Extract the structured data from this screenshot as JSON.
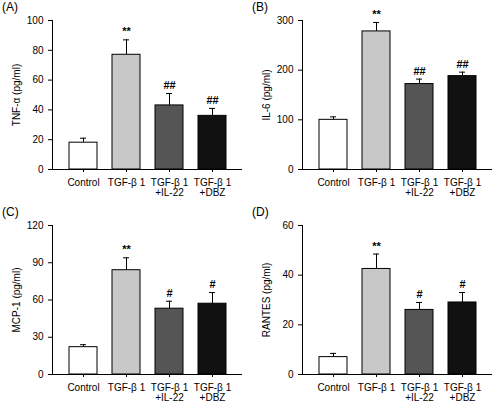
{
  "chart_data": [
    {
      "type": "bar",
      "title": "(A)",
      "y_label": "TNF-α (pg/ml)",
      "categories": [
        "Control",
        "TGF-β 1",
        "TGF-β 1\n+IL-22",
        "TGF-β 1\n+DBZ"
      ],
      "values": [
        18,
        77,
        43,
        36
      ],
      "errors": [
        3,
        10,
        8,
        5
      ],
      "significance": [
        null,
        "**",
        "##",
        "##"
      ],
      "colors": [
        "#ffffff",
        "#c8c8c8",
        "#555555",
        "#111111"
      ],
      "ylim": [
        0,
        100
      ],
      "yticks": [
        0,
        20,
        40,
        60,
        80,
        100
      ]
    },
    {
      "type": "bar",
      "title": "(B)",
      "y_label": "IL-6 (pg/ml)",
      "categories": [
        "Control",
        "TGF-β 1",
        "TGF-β 1\n+IL-22",
        "TGF-β 1\n+DBZ"
      ],
      "values": [
        100,
        278,
        172,
        188
      ],
      "errors": [
        6,
        18,
        10,
        8
      ],
      "significance": [
        null,
        "**",
        "##",
        "##"
      ],
      "colors": [
        "#ffffff",
        "#c8c8c8",
        "#555555",
        "#111111"
      ],
      "ylim": [
        0,
        300
      ],
      "yticks": [
        0,
        100,
        200,
        300
      ]
    },
    {
      "type": "bar",
      "title": "(C)",
      "y_label": "MCP-1 (pg/ml)",
      "categories": [
        "Control",
        "TGF-β 1",
        "TGF-β 1\n+IL-22",
        "TGF-β 1\n+DBZ"
      ],
      "values": [
        22,
        84,
        53,
        57
      ],
      "errors": [
        2,
        10,
        6,
        9
      ],
      "significance": [
        null,
        "**",
        "#",
        "#"
      ],
      "colors": [
        "#ffffff",
        "#c8c8c8",
        "#555555",
        "#111111"
      ],
      "ylim": [
        0,
        120
      ],
      "yticks": [
        0,
        30,
        60,
        90,
        120
      ]
    },
    {
      "type": "bar",
      "title": "(D)",
      "y_label": "RANTES (pg/ml)",
      "categories": [
        "Control",
        "TGF-β 1",
        "TGF-β 1\n+IL-22",
        "TGF-β 1\n+DBZ"
      ],
      "values": [
        7,
        42.5,
        26,
        29
      ],
      "errors": [
        1.5,
        6,
        3,
        4
      ],
      "significance": [
        null,
        "**",
        "#",
        "#"
      ],
      "colors": [
        "#ffffff",
        "#c8c8c8",
        "#555555",
        "#111111"
      ],
      "ylim": [
        0,
        60
      ],
      "yticks": [
        0,
        20,
        40,
        60
      ]
    }
  ]
}
